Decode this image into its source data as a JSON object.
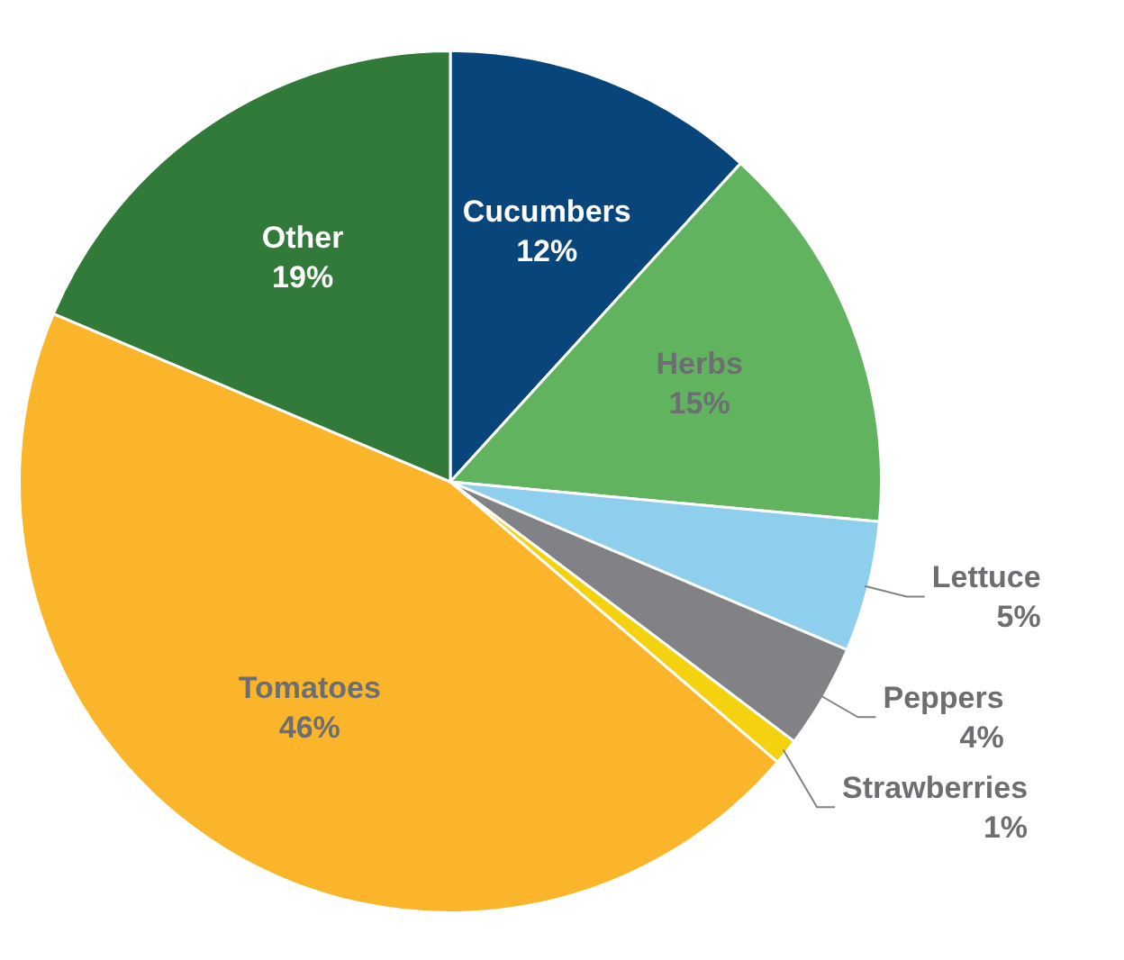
{
  "chart_data": {
    "type": "pie",
    "categories": [
      "Cucumbers",
      "Herbs",
      "Lettuce",
      "Peppers",
      "Strawberries",
      "Tomatoes",
      "Other"
    ],
    "values": [
      12,
      15,
      5,
      4,
      1,
      46,
      19
    ],
    "value_labels": [
      "12%",
      "15%",
      "5%",
      "4%",
      "1%",
      "46%",
      "19%"
    ],
    "colors": [
      "#08457a",
      "#62b35f",
      "#8fcfee",
      "#808285",
      "#f5d20f",
      "#fbb52b",
      "#317a3a"
    ],
    "legend": false
  }
}
